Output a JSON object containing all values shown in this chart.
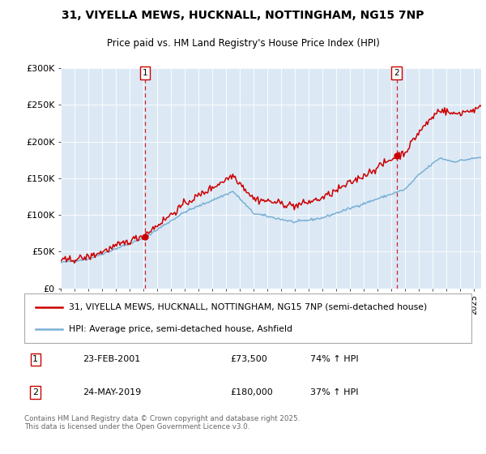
{
  "title1": "31, VIYELLA MEWS, HUCKNALL, NOTTINGHAM, NG15 7NP",
  "title2": "Price paid vs. HM Land Registry's House Price Index (HPI)",
  "bg_color": "#dce9f5",
  "line1_color": "#cc0000",
  "line2_color": "#7ab0d4",
  "vline_color": "#cc0000",
  "sale1_date": "23-FEB-2001",
  "sale1_price": 73500,
  "sale1_label": "74% ↑ HPI",
  "sale2_date": "24-MAY-2019",
  "sale2_price": 180000,
  "sale2_label": "37% ↑ HPI",
  "legend1": "31, VIYELLA MEWS, HUCKNALL, NOTTINGHAM, NG15 7NP (semi-detached house)",
  "legend2": "HPI: Average price, semi-detached house, Ashfield",
  "footer": "Contains HM Land Registry data © Crown copyright and database right 2025.\nThis data is licensed under the Open Government Licence v3.0.",
  "ylim": [
    0,
    300000
  ],
  "xstart": 1995.0,
  "xend": 2025.5,
  "yticks": [
    0,
    50000,
    100000,
    150000,
    200000,
    250000,
    300000
  ],
  "ytick_labels": [
    "£0",
    "£50K",
    "£100K",
    "£150K",
    "£200K",
    "£250K",
    "£300K"
  ],
  "t1": 2001.12,
  "t2": 2019.37
}
